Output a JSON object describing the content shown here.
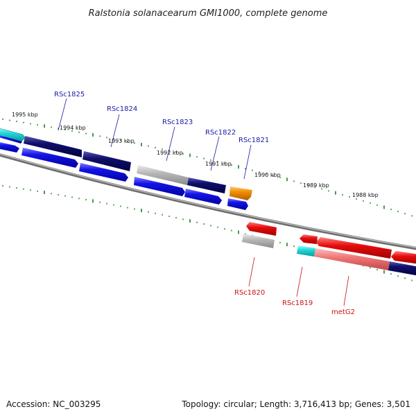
{
  "title": "Ralstonia solanacearum GMI1000, complete genome",
  "footer": {
    "accession": "Accession: NC_003295",
    "summary": "Topology: circular; Length: 3,716,413 bp; Genes: 3,501"
  },
  "scale_labels": [
    "1995 kbp",
    "1994 kbp",
    "1993 kbp",
    "1992 kbp",
    "1991 kbp",
    "1990 kbp",
    "1989 kbp",
    "1988 kbp"
  ],
  "gene_labels_top": [
    "RSc1825",
    "RSc1824",
    "RSc1823",
    "RSc1822",
    "RSc1821"
  ],
  "gene_labels_bottom": [
    "RSc1820",
    "RSc1819",
    "metG2"
  ],
  "colors": {
    "backbone": "#7a7a7a",
    "tick": "#1f7f1f",
    "navy": "#0d0d6e",
    "blue": "#1414e6",
    "cyan": "#22d8d8",
    "gray": "#b4b4b4",
    "orange": "#f08c00",
    "red": "#e60c0c",
    "pink": "#f07878",
    "label_top": "#1a1aa8",
    "label_bottom": "#cc1111"
  }
}
